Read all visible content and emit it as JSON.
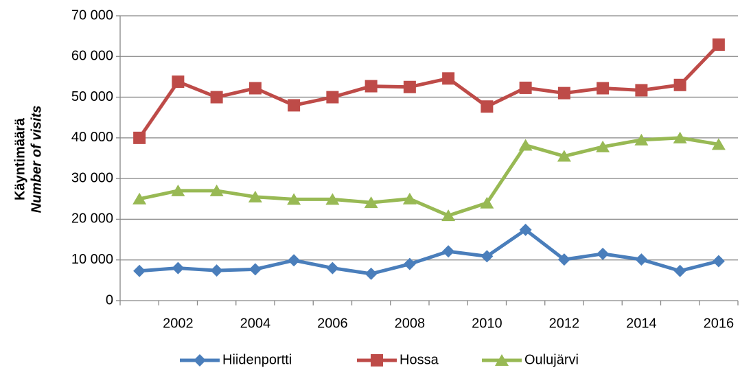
{
  "chart_data": {
    "type": "line",
    "y_label": "Käyntimäärä",
    "y_label_2": "Number of visits",
    "categories": [
      null,
      "2002",
      null,
      "2004",
      null,
      "2006",
      null,
      "2008",
      null,
      "2010",
      null,
      "2012",
      null,
      "2014",
      null,
      "2016"
    ],
    "series": [
      {
        "name": "Hiidenportti",
        "color": "#4a7ebb",
        "marker": "diamond",
        "values": [
          7300,
          8000,
          7400,
          7700,
          9900,
          8000,
          6600,
          9000,
          12100,
          10900,
          17400,
          10100,
          11500,
          10100,
          7300,
          9700
        ]
      },
      {
        "name": "Hossa",
        "color": "#be4b48",
        "marker": "square",
        "values": [
          40000,
          53800,
          50000,
          52200,
          48000,
          50000,
          52700,
          52500,
          54600,
          47700,
          52300,
          51000,
          52200,
          51700,
          53000,
          62900
        ]
      },
      {
        "name": "Oulujärvi",
        "color": "#98b954",
        "marker": "triangle",
        "values": [
          25000,
          27000,
          27000,
          25500,
          24900,
          24900,
          24100,
          25000,
          20900,
          24000,
          38200,
          35500,
          37800,
          39500,
          40000,
          38400
        ]
      }
    ],
    "ylim": [
      0,
      70000
    ],
    "yticks": [
      0,
      {
        "value": 10000,
        "label": "10 000"
      },
      {
        "value": 20000,
        "label": "20 000"
      },
      {
        "value": 30000,
        "label": "30 000"
      },
      {
        "value": 40000,
        "label": "40 000"
      },
      {
        "value": 50000,
        "label": "50 000"
      },
      {
        "value": 60000,
        "label": "60 000"
      },
      {
        "value": 70000,
        "label": "70 000"
      }
    ],
    "grid": true,
    "legend": "bottom"
  }
}
